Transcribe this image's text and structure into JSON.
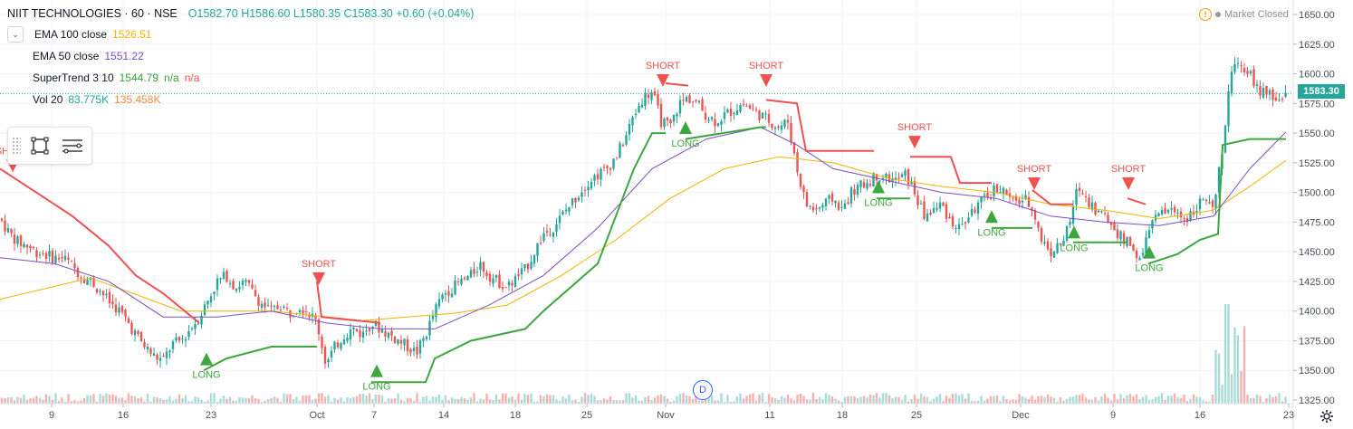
{
  "legend": {
    "symbol": "NIIT TECHNOLOGIES · 60 · NSE",
    "open": "O1582.70",
    "high": "H1586.60",
    "low": "L1580.35",
    "close": "C1583.30",
    "change": "+0.60 (+0.04%)",
    "ema100_label": "EMA 100 close",
    "ema100_value": "1526.51",
    "ema50_label": "EMA 50 close",
    "ema50_value": "1551.22",
    "st_label": "SuperTrend 3 10",
    "st_value": "1544.79",
    "st_na1": "n/a",
    "st_na2": "n/a",
    "vol_label": "Vol 20",
    "vol_value1": "83.775K",
    "vol_value2": "135.458K"
  },
  "status": {
    "market": "Market Closed",
    "warn_icon": "!"
  },
  "last_price": "1583.30",
  "event_marker": "D",
  "toolbox": {
    "icons": [
      "drag-grip-icon",
      "rectangle-select-icon",
      "object-tree-icon"
    ]
  },
  "colors": {
    "up": "#26a69a",
    "down": "#ef5350",
    "ema100": "#f0b400",
    "ema50": "#7a4fc4",
    "st_up": "#3ea63e",
    "st_down": "#f05050",
    "grid": "#f0f3fa",
    "axis_text": "#4a4e5a"
  },
  "chart_data": {
    "type": "candlestick",
    "title": "NIIT TECHNOLOGIES · 60 · NSE",
    "price_axis": {
      "min": 1325,
      "max": 1650,
      "ticks": [
        1650,
        1625,
        1600,
        1575,
        1550,
        1525,
        1500,
        1475,
        1450,
        1425,
        1400,
        1375,
        1350,
        1325
      ]
    },
    "x_labels": [
      "9",
      "16",
      "23",
      "Oct",
      "7",
      "14",
      "18",
      "25",
      "Nov",
      "11",
      "18",
      "25",
      "Dec",
      "9",
      "16",
      "23"
    ],
    "close_path": [
      [
        0,
        1478
      ],
      [
        10,
        1466
      ],
      [
        20,
        1458
      ],
      [
        30,
        1455
      ],
      [
        40,
        1450
      ],
      [
        50,
        1448
      ],
      [
        60,
        1445
      ],
      [
        70,
        1445
      ],
      [
        80,
        1438
      ],
      [
        90,
        1430
      ],
      [
        100,
        1425
      ],
      [
        110,
        1418
      ],
      [
        120,
        1408
      ],
      [
        130,
        1402
      ],
      [
        140,
        1392
      ],
      [
        150,
        1380
      ],
      [
        160,
        1370
      ],
      [
        170,
        1362
      ],
      [
        180,
        1358
      ],
      [
        190,
        1372
      ],
      [
        200,
        1375
      ],
      [
        210,
        1385
      ],
      [
        220,
        1395
      ],
      [
        230,
        1410
      ],
      [
        240,
        1425
      ],
      [
        250,
        1430
      ],
      [
        260,
        1420
      ],
      [
        270,
        1425
      ],
      [
        280,
        1415
      ],
      [
        290,
        1405
      ],
      [
        300,
        1400
      ],
      [
        310,
        1405
      ],
      [
        320,
        1398
      ],
      [
        330,
        1405
      ],
      [
        340,
        1400
      ],
      [
        350,
        1390
      ],
      [
        360,
        1355
      ],
      [
        370,
        1370
      ],
      [
        380,
        1380
      ],
      [
        390,
        1385
      ],
      [
        400,
        1380
      ],
      [
        410,
        1390
      ],
      [
        420,
        1385
      ],
      [
        430,
        1380
      ],
      [
        440,
        1375
      ],
      [
        450,
        1370
      ],
      [
        460,
        1365
      ],
      [
        470,
        1380
      ],
      [
        480,
        1400
      ],
      [
        490,
        1415
      ],
      [
        500,
        1420
      ],
      [
        510,
        1425
      ],
      [
        520,
        1430
      ],
      [
        530,
        1440
      ],
      [
        540,
        1430
      ],
      [
        550,
        1425
      ],
      [
        560,
        1420
      ],
      [
        570,
        1428
      ],
      [
        580,
        1435
      ],
      [
        590,
        1450
      ],
      [
        600,
        1465
      ],
      [
        610,
        1470
      ],
      [
        620,
        1480
      ],
      [
        630,
        1490
      ],
      [
        640,
        1500
      ],
      [
        650,
        1510
      ],
      [
        660,
        1515
      ],
      [
        670,
        1520
      ],
      [
        680,
        1530
      ],
      [
        690,
        1545
      ],
      [
        700,
        1565
      ],
      [
        710,
        1580
      ],
      [
        720,
        1585
      ],
      [
        730,
        1560
      ],
      [
        740,
        1555
      ],
      [
        750,
        1575
      ],
      [
        760,
        1580
      ],
      [
        770,
        1575
      ],
      [
        780,
        1565
      ],
      [
        790,
        1560
      ],
      [
        800,
        1565
      ],
      [
        810,
        1570
      ],
      [
        820,
        1575
      ],
      [
        830,
        1570
      ],
      [
        840,
        1565
      ],
      [
        850,
        1560
      ],
      [
        860,
        1555
      ],
      [
        870,
        1560
      ],
      [
        880,
        1520
      ],
      [
        890,
        1490
      ],
      [
        900,
        1485
      ],
      [
        910,
        1490
      ],
      [
        920,
        1495
      ],
      [
        930,
        1485
      ],
      [
        940,
        1500
      ],
      [
        950,
        1505
      ],
      [
        960,
        1510
      ],
      [
        970,
        1515
      ],
      [
        980,
        1512
      ],
      [
        990,
        1510
      ],
      [
        1000,
        1515
      ],
      [
        1010,
        1500
      ],
      [
        1020,
        1480
      ],
      [
        1030,
        1485
      ],
      [
        1040,
        1490
      ],
      [
        1050,
        1475
      ],
      [
        1060,
        1470
      ],
      [
        1070,
        1480
      ],
      [
        1080,
        1490
      ],
      [
        1090,
        1495
      ],
      [
        1100,
        1505
      ],
      [
        1110,
        1500
      ],
      [
        1120,
        1490
      ],
      [
        1130,
        1495
      ],
      [
        1140,
        1488
      ],
      [
        1150,
        1460
      ],
      [
        1160,
        1450
      ],
      [
        1170,
        1455
      ],
      [
        1180,
        1470
      ],
      [
        1190,
        1505
      ],
      [
        1200,
        1495
      ],
      [
        1210,
        1485
      ],
      [
        1220,
        1480
      ],
      [
        1230,
        1470
      ],
      [
        1240,
        1460
      ],
      [
        1250,
        1455
      ],
      [
        1260,
        1440
      ],
      [
        1270,
        1475
      ],
      [
        1280,
        1480
      ],
      [
        1290,
        1485
      ],
      [
        1300,
        1482
      ],
      [
        1310,
        1478
      ],
      [
        1320,
        1488
      ],
      [
        1330,
        1495
      ],
      [
        1340,
        1482
      ],
      [
        1350,
        1540
      ],
      [
        1360,
        1605
      ],
      [
        1370,
        1610
      ],
      [
        1380,
        1600
      ],
      [
        1390,
        1585
      ],
      [
        1400,
        1582
      ],
      [
        1410,
        1578
      ],
      [
        1420,
        1583
      ]
    ],
    "ema100": [
      [
        0,
        1410
      ],
      [
        100,
        1428
      ],
      [
        200,
        1400
      ],
      [
        300,
        1400
      ],
      [
        400,
        1392
      ],
      [
        500,
        1398
      ],
      [
        560,
        1405
      ],
      [
        620,
        1430
      ],
      [
        680,
        1460
      ],
      [
        740,
        1495
      ],
      [
        800,
        1520
      ],
      [
        860,
        1530
      ],
      [
        920,
        1525
      ],
      [
        980,
        1512
      ],
      [
        1040,
        1505
      ],
      [
        1100,
        1500
      ],
      [
        1160,
        1490
      ],
      [
        1220,
        1485
      ],
      [
        1280,
        1478
      ],
      [
        1340,
        1485
      ],
      [
        1380,
        1505
      ],
      [
        1420,
        1527
      ]
    ],
    "ema50": [
      [
        0,
        1445
      ],
      [
        60,
        1440
      ],
      [
        120,
        1425
      ],
      [
        180,
        1395
      ],
      [
        240,
        1395
      ],
      [
        300,
        1400
      ],
      [
        360,
        1390
      ],
      [
        420,
        1385
      ],
      [
        480,
        1385
      ],
      [
        540,
        1405
      ],
      [
        600,
        1430
      ],
      [
        660,
        1470
      ],
      [
        720,
        1520
      ],
      [
        780,
        1545
      ],
      [
        840,
        1555
      ],
      [
        880,
        1540
      ],
      [
        920,
        1520
      ],
      [
        980,
        1510
      ],
      [
        1040,
        1500
      ],
      [
        1100,
        1495
      ],
      [
        1160,
        1480
      ],
      [
        1220,
        1475
      ],
      [
        1280,
        1472
      ],
      [
        1340,
        1480
      ],
      [
        1380,
        1520
      ],
      [
        1420,
        1551
      ]
    ],
    "supertrend_segments": [
      {
        "trend": "down",
        "points": [
          [
            0,
            1520
          ],
          [
            40,
            1500
          ],
          [
            80,
            1480
          ],
          [
            120,
            1455
          ],
          [
            150,
            1430
          ],
          [
            180,
            1415
          ],
          [
            220,
            1390
          ]
        ]
      },
      {
        "trend": "up",
        "points": [
          [
            225,
            1350
          ],
          [
            250,
            1360
          ],
          [
            300,
            1370
          ],
          [
            350,
            1370
          ]
        ]
      },
      {
        "trend": "down",
        "points": [
          [
            350,
            1425
          ],
          [
            355,
            1395
          ],
          [
            420,
            1390
          ]
        ]
      },
      {
        "trend": "up",
        "points": [
          [
            410,
            1340
          ],
          [
            470,
            1340
          ],
          [
            480,
            1360
          ],
          [
            520,
            1375
          ],
          [
            580,
            1385
          ],
          [
            600,
            1400
          ],
          [
            660,
            1440
          ],
          [
            700,
            1520
          ],
          [
            720,
            1550
          ],
          [
            735,
            1550
          ]
        ]
      },
      {
        "trend": "down",
        "points": [
          [
            735,
            1592
          ],
          [
            760,
            1590
          ]
        ]
      },
      {
        "trend": "up",
        "points": [
          [
            757,
            1545
          ],
          [
            840,
            1555
          ],
          [
            846,
            1555
          ]
        ]
      },
      {
        "trend": "down",
        "points": [
          [
            846,
            1578
          ],
          [
            880,
            1575
          ],
          [
            890,
            1535
          ],
          [
            965,
            1535
          ]
        ]
      },
      {
        "trend": "up",
        "points": [
          [
            968,
            1495
          ],
          [
            1005,
            1495
          ]
        ]
      },
      {
        "trend": "down",
        "points": [
          [
            1005,
            1530
          ],
          [
            1050,
            1530
          ],
          [
            1060,
            1508
          ],
          [
            1095,
            1508
          ]
        ]
      },
      {
        "trend": "up",
        "points": [
          [
            1095,
            1470
          ],
          [
            1140,
            1470
          ]
        ]
      },
      {
        "trend": "down",
        "points": [
          [
            1140,
            1502
          ],
          [
            1160,
            1490
          ],
          [
            1185,
            1490
          ]
        ]
      },
      {
        "trend": "up",
        "points": [
          [
            1185,
            1458
          ],
          [
            1245,
            1458
          ]
        ]
      },
      {
        "trend": "down",
        "points": [
          [
            1245,
            1495
          ],
          [
            1265,
            1490
          ]
        ]
      },
      {
        "trend": "up",
        "points": [
          [
            1268,
            1440
          ],
          [
            1300,
            1448
          ],
          [
            1325,
            1460
          ],
          [
            1345,
            1465
          ],
          [
            1350,
            1540
          ],
          [
            1380,
            1545
          ],
          [
            1420,
            1545
          ]
        ]
      }
    ],
    "signals": [
      {
        "type": "SHORT",
        "x": 14,
        "price": 1520
      },
      {
        "type": "LONG",
        "x": 228,
        "price": 1365
      },
      {
        "type": "SHORT",
        "x": 352,
        "price": 1425
      },
      {
        "type": "LONG",
        "x": 416,
        "price": 1355
      },
      {
        "type": "SHORT",
        "x": 732,
        "price": 1592
      },
      {
        "type": "LONG",
        "x": 757,
        "price": 1560
      },
      {
        "type": "SHORT",
        "x": 846,
        "price": 1592
      },
      {
        "type": "LONG",
        "x": 970,
        "price": 1510
      },
      {
        "type": "SHORT",
        "x": 1010,
        "price": 1540
      },
      {
        "type": "LONG",
        "x": 1095,
        "price": 1485
      },
      {
        "type": "SHORT",
        "x": 1142,
        "price": 1505
      },
      {
        "type": "LONG",
        "x": 1186,
        "price": 1472
      },
      {
        "type": "SHORT",
        "x": 1246,
        "price": 1505
      },
      {
        "type": "LONG",
        "x": 1269,
        "price": 1455
      }
    ]
  }
}
